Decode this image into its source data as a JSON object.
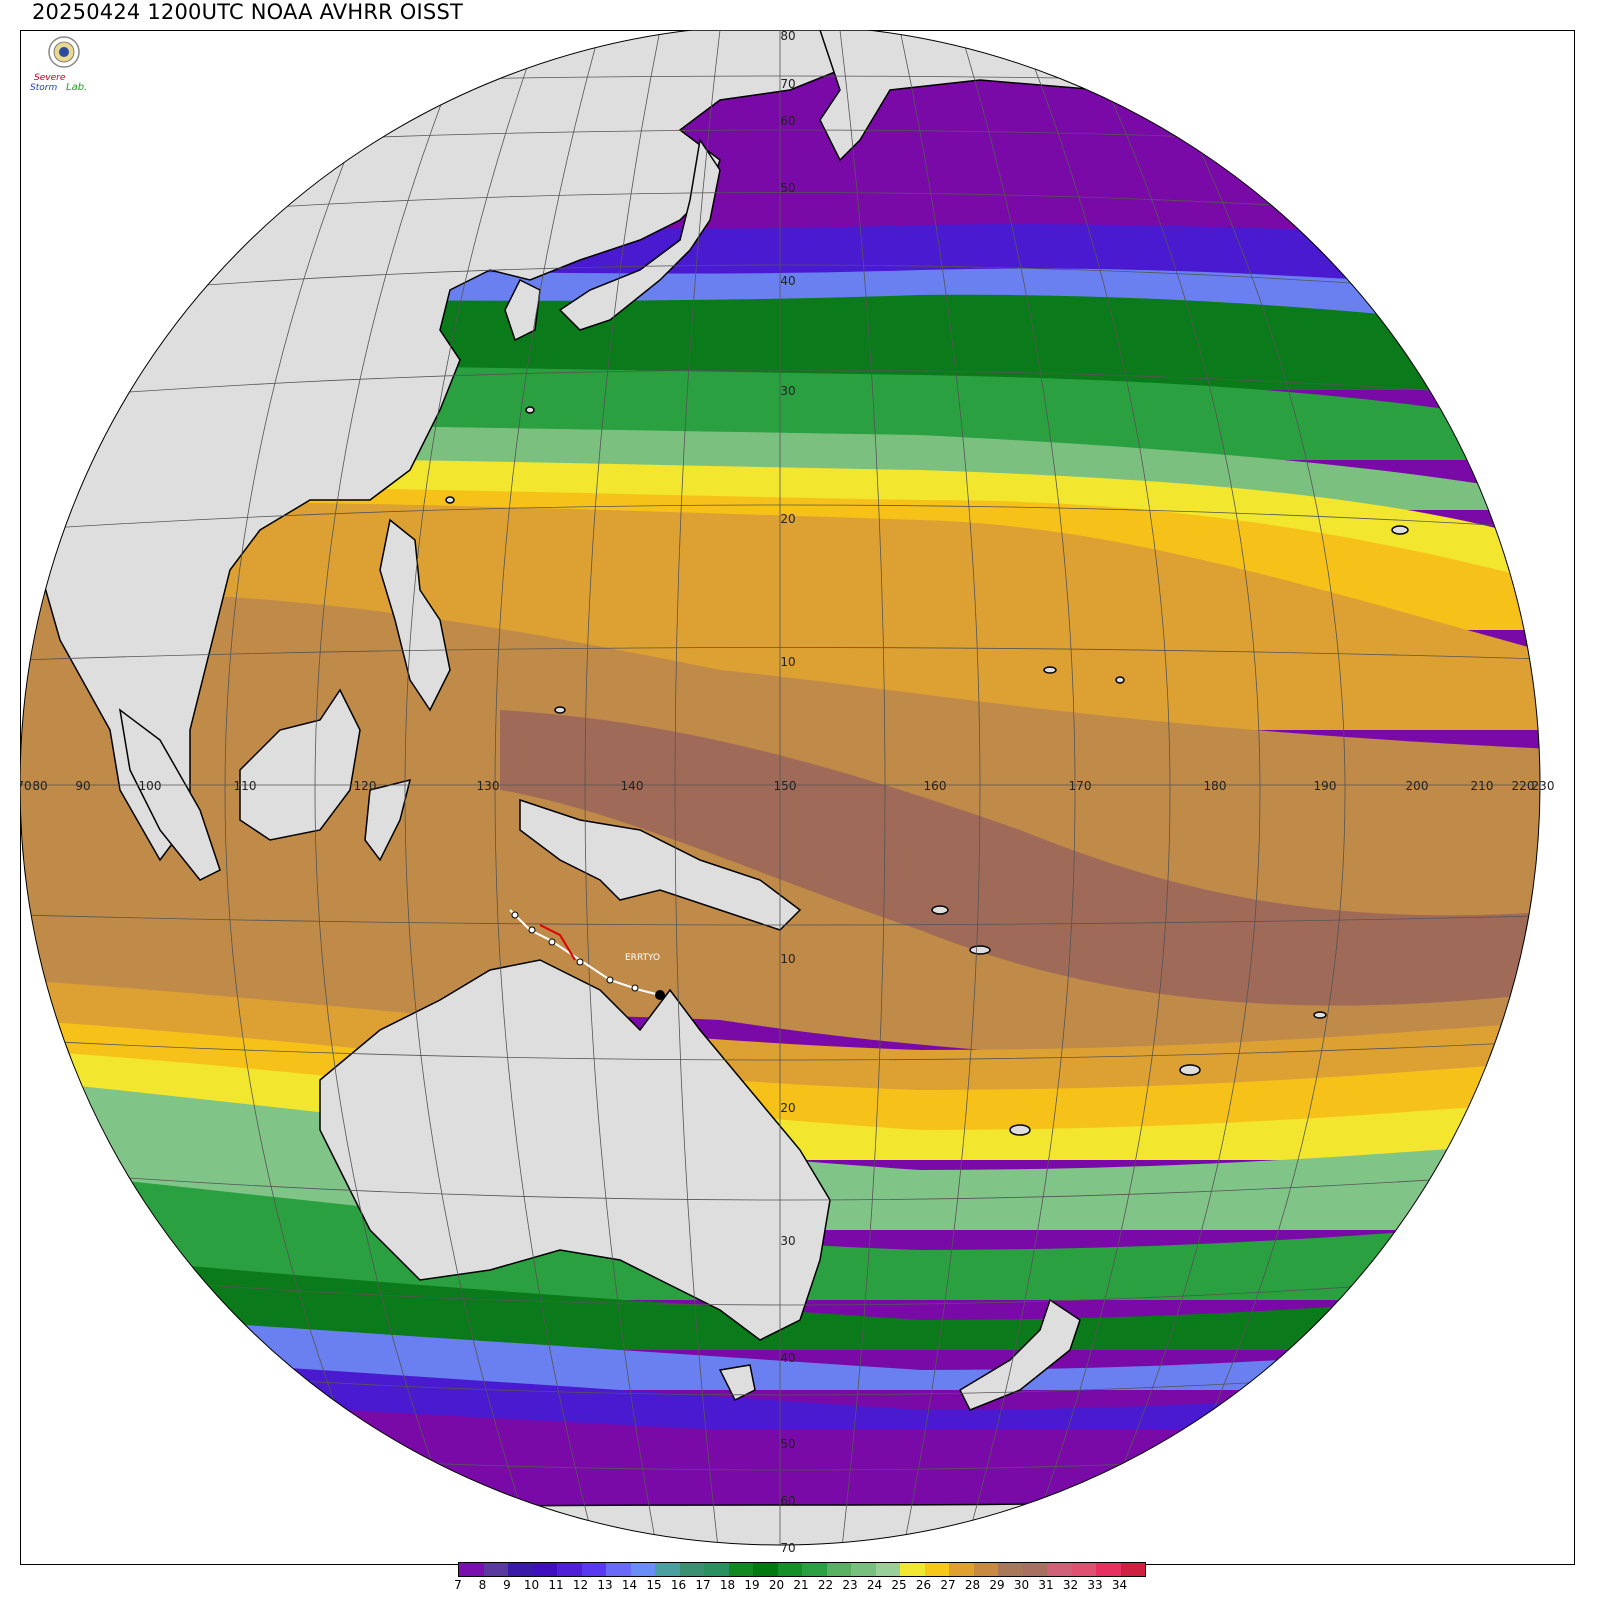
{
  "title": "20250424 1200UTC NOAA AVHRR OISST",
  "logo": {
    "line1": "Severe",
    "line2": "Storm",
    "line3": "Lab."
  },
  "colors": {
    "land": "#dedede",
    "coast": "#000000",
    "grid": "#555555"
  },
  "colorbar": {
    "labels": [
      "7",
      "8",
      "9",
      "10",
      "11",
      "12",
      "13",
      "14",
      "15",
      "16",
      "17",
      "18",
      "19",
      "20",
      "21",
      "22",
      "23",
      "24",
      "25",
      "26",
      "27",
      "28",
      "29",
      "30",
      "31",
      "32",
      "33",
      "34"
    ],
    "colors": [
      "#7b10b0",
      "#5b3aa0",
      "#3a1aa8",
      "#4010c0",
      "#5020d8",
      "#5a3af0",
      "#6a6af8",
      "#6a8ef8",
      "#4aa0a0",
      "#3a9070",
      "#2a9060",
      "#108a20",
      "#007a10",
      "#159028",
      "#2aa040",
      "#58b060",
      "#78c080",
      "#98d098",
      "#f0e830",
      "#f8c818",
      "#e0a030",
      "#c88a40",
      "#a87858",
      "#a87060",
      "#d06078",
      "#e05070",
      "#e83060",
      "#d02040"
    ]
  },
  "track": {
    "label": "ERRTYO"
  },
  "latitude_labels": [
    "70",
    "60",
    "50",
    "40",
    "30",
    "20",
    "10",
    "10",
    "20",
    "30",
    "40",
    "50",
    "60",
    "70",
    "80"
  ],
  "longitude_labels": [
    "70",
    "80",
    "90",
    "100",
    "110",
    "120",
    "130",
    "140",
    "150",
    "160",
    "170",
    "180",
    "190",
    "200",
    "210",
    "220",
    "230"
  ]
}
